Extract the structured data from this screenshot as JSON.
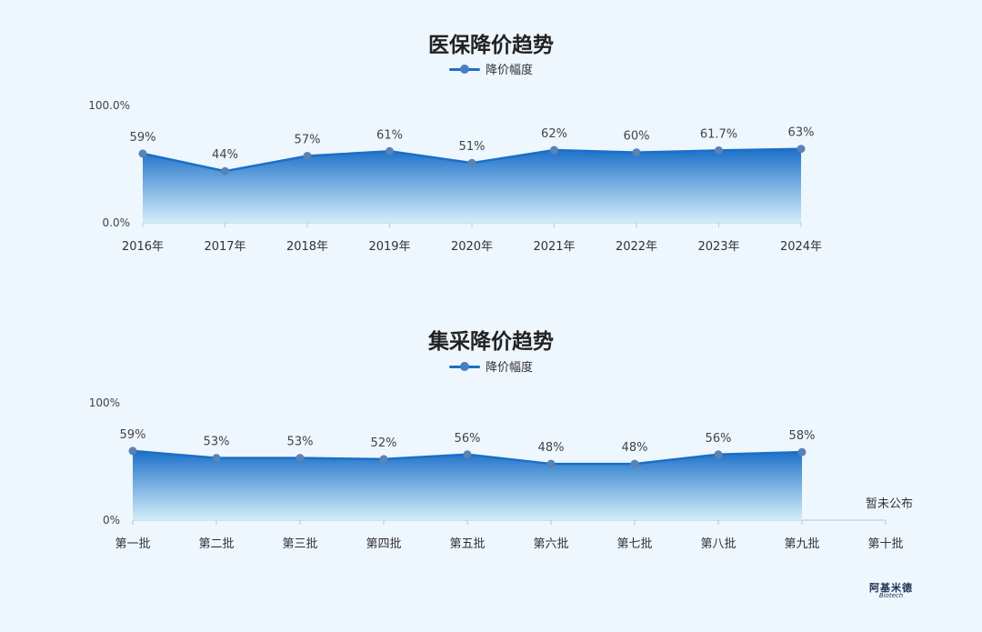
{
  "chart_data": [
    {
      "type": "area",
      "title": "医保降价趋势",
      "legend": "降价幅度",
      "categories": [
        "2016年",
        "2017年",
        "2018年",
        "2019年",
        "2020年",
        "2021年",
        "2022年",
        "2023年",
        "2024年"
      ],
      "series": [
        {
          "name": "降价幅度",
          "values": [
            59,
            44,
            57,
            61,
            51,
            62,
            60,
            61.7,
            63
          ]
        }
      ],
      "value_labels": [
        "59%",
        "44%",
        "57%",
        "61%",
        "51%",
        "62%",
        "60%",
        "61.7%",
        "63%"
      ],
      "y_ticks": [
        "0.0%",
        "100.0%"
      ],
      "ylim": [
        0,
        100
      ],
      "color": "#1a6fc8"
    },
    {
      "type": "area",
      "title": "集采降价趋势",
      "legend": "降价幅度",
      "categories": [
        "第一批",
        "第二批",
        "第三批",
        "第四批",
        "第五批",
        "第六批",
        "第七批",
        "第八批",
        "第九批",
        "第十批"
      ],
      "series": [
        {
          "name": "降价幅度",
          "values": [
            59,
            53,
            53,
            52,
            56,
            48,
            48,
            56,
            58,
            null
          ]
        }
      ],
      "value_labels": [
        "59%",
        "53%",
        "53%",
        "52%",
        "56%",
        "48%",
        "48%",
        "56%",
        "58%",
        ""
      ],
      "y_ticks": [
        "0%",
        "100%"
      ],
      "ylim": [
        0,
        100
      ],
      "note": "暂未公布",
      "color": "#1a6fc8"
    }
  ],
  "brand": {
    "cn": "阿基米德",
    "en": "Biotech"
  }
}
